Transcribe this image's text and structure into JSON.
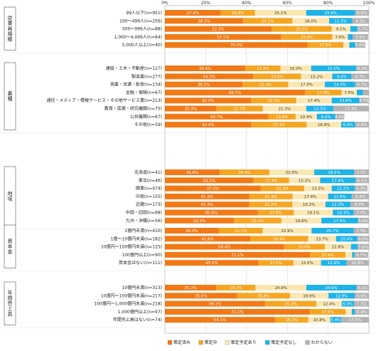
{
  "chart_data": {
    "type": "bar",
    "stacked": "percent",
    "orientation": "horizontal",
    "xlim": [
      0,
      100
    ],
    "x_ticks": [
      "0%",
      "20%",
      "40%",
      "60%",
      "80%",
      "100%"
    ],
    "series": [
      {
        "name": "策定済み",
        "color": "#f07a17"
      },
      {
        "name": "策定中",
        "color": "#f5a623"
      },
      {
        "name": "策定予定あり",
        "color": "#fbe7b2"
      },
      {
        "name": "策定予定なし",
        "color": "#1fb3e6"
      },
      {
        "name": "わからない",
        "color": "#b3b3b3"
      }
    ],
    "groups": [
      {
        "name": "従業員規模",
        "rows": [
          {
            "label": "99人以下(n=951)",
            "values": [
              27.4,
              16.8,
              25.1,
              23.9,
              6.8
            ]
          },
          {
            "label": "100～499人(n=256)",
            "values": [
              38.3,
              24.2,
              18.0,
              11.3,
              8.2
            ]
          },
          {
            "label": "500～999人(n=88)",
            "values": [
              52.3,
              29.5,
              9.1,
              3.4,
              5.7
            ]
          },
          {
            "label": "1,000～4,999人(n=84)",
            "values": [
              57.1,
              25.0,
              7.6,
              2.4,
              7.5
            ]
          },
          {
            "label": "5,000人以上(n=40)",
            "values": [
              70.0,
              17.5,
              2.9,
              2.9,
              5.0
            ]
          }
        ]
      },
      {
        "name": "業種",
        "rows": [
          {
            "label": "建設・土木・不動産(n=127)",
            "values": [
              39.4,
              17.3,
              15.0,
              22.0,
              6.3
            ]
          },
          {
            "label": "製造業(n=277)",
            "values": [
              43.3,
              23.5,
              15.2,
              9.4,
              8.7
            ]
          },
          {
            "label": "商業・流通・飲食(n=134)",
            "values": [
              38.1,
              22.4,
              17.9,
              14.9,
              6.7
            ]
          },
          {
            "label": "金融・保険(n=67)",
            "values": [
              68.7,
              17.9,
              7.5,
              3.0,
              3.0
            ]
          },
          {
            "label": "通信・メディア・情報サービス・その他サービス業(n=213)",
            "values": [
              42.3,
              22.1,
              17.4,
              13.6,
              4.7
            ]
          },
          {
            "label": "教育・医療・研究機関(n=75)",
            "values": [
              25.3,
              22.7,
              21.3,
              13.3,
              17.3
            ]
          },
          {
            "label": "公共機関(n=67)",
            "values": [
              50.7,
              13.4,
              10.4,
              9.0,
              4.5
            ]
          },
          {
            "label": "その他(n=59)",
            "values": [
              42.4,
              27.1,
              16.9,
              6.8,
              6.8
            ]
          }
        ]
      },
      {
        "name": "地域",
        "rows": [
          {
            "label": "北海道(n=41)",
            "values": [
              26.8,
              24.4,
              22.0,
              19.5,
              7.3
            ]
          },
          {
            "label": "東北(n=46)",
            "values": [
              43.5,
              17.4,
              15.2,
              17.4,
              6.5
            ]
          },
          {
            "label": "関東(n=474)",
            "values": [
              47.0,
              21.3,
              13.5,
              11.2,
              6.3
            ]
          },
          {
            "label": "中部(n=155)",
            "values": [
              41.3,
              21.3,
              17.4,
              11.6,
              8.4
            ]
          },
          {
            "label": "近畿(n=173)",
            "values": [
              41.3,
              21.2,
              16.2,
              12.3,
              8.9
            ]
          },
          {
            "label": "中国・四国(n=68)",
            "values": [
              45.6,
              17.6,
              19.1,
              10.3,
              7.4
            ]
          },
          {
            "label": "九州・沖縄(n=56)",
            "values": [
              33.9,
              23.2,
              19.6,
              17.9,
              5.4
            ]
          }
        ]
      },
      {
        "name": "資本金",
        "rows": [
          {
            "label": "1億円未満(n=410)",
            "values": [
              26.3,
              21.7,
              23.9,
              20.7,
              7.3
            ]
          },
          {
            "label": "1億～10億円未満(n=182)",
            "values": [
              41.8,
              28.4,
              13.7,
              10.4,
              6.0
            ]
          },
          {
            "label": "10億円～100億円未満(n=125)",
            "values": [
              58.4,
              20.0,
              12.8,
              3.2,
              5.6
            ]
          },
          {
            "label": "100億円以上(n=90)",
            "values": [
              71.1,
              17.4,
              3.3,
              1.1,
              6.7
            ]
          },
          {
            "label": "資本金はない(n=111)",
            "values": [
              45.9,
              17.1,
              13.5,
              12.6,
              10.8
            ]
          }
        ]
      },
      {
        "name": "年間売上高",
        "rows": [
          {
            "label": "10億円未満(n=313)",
            "values": [
              25.2,
              19.2,
              24.9,
              24.6,
              6.1
            ]
          },
          {
            "label": "10億円～100億円未満(n=217)",
            "values": [
              35.5,
              25.8,
              18.9,
              12.9,
              6.9
            ]
          },
          {
            "label": "100億円～1,000億円未満(n=218)",
            "values": [
              49.1,
              25.2,
              12.4,
              6.0,
              7.3
            ]
          },
          {
            "label": "1,000億円以上(n=97)",
            "values": [
              71.1,
              17.5,
              3.0,
              1.5,
              6.9
            ]
          },
          {
            "label": "年間売上高はない(n=74)",
            "values": [
              54.1,
              16.2,
              10.8,
              5.4,
              13.5
            ]
          }
        ]
      }
    ]
  }
}
